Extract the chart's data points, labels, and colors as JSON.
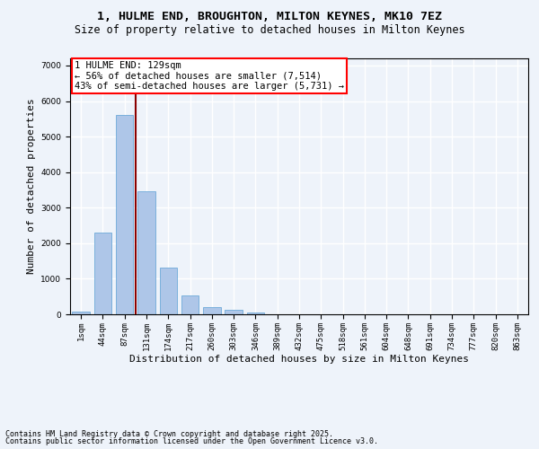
{
  "title1": "1, HULME END, BROUGHTON, MILTON KEYNES, MK10 7EZ",
  "title2": "Size of property relative to detached houses in Milton Keynes",
  "xlabel": "Distribution of detached houses by size in Milton Keynes",
  "ylabel": "Number of detached properties",
  "bar_color": "#aec6e8",
  "bar_edge_color": "#5a9fd4",
  "categories": [
    "1sqm",
    "44sqm",
    "87sqm",
    "131sqm",
    "174sqm",
    "217sqm",
    "260sqm",
    "303sqm",
    "346sqm",
    "389sqm",
    "432sqm",
    "475sqm",
    "518sqm",
    "561sqm",
    "604sqm",
    "648sqm",
    "691sqm",
    "734sqm",
    "777sqm",
    "820sqm",
    "863sqm"
  ],
  "values": [
    70,
    2300,
    5600,
    3450,
    1320,
    520,
    210,
    120,
    60,
    0,
    0,
    0,
    0,
    0,
    0,
    0,
    0,
    0,
    0,
    0,
    0
  ],
  "ylim": [
    0,
    7200
  ],
  "yticks": [
    0,
    1000,
    2000,
    3000,
    4000,
    5000,
    6000,
    7000
  ],
  "annotation_text": "1 HULME END: 129sqm\n← 56% of detached houses are smaller (7,514)\n43% of semi-detached houses are larger (5,731) →",
  "annotation_box_color": "white",
  "annotation_box_edgecolor": "red",
  "vline_color": "darkred",
  "footer1": "Contains HM Land Registry data © Crown copyright and database right 2025.",
  "footer2": "Contains public sector information licensed under the Open Government Licence v3.0.",
  "bg_color": "#eef3fa",
  "plot_bg_color": "#eef3fa",
  "grid_color": "white",
  "title_fontsize": 9.5,
  "subtitle_fontsize": 8.5,
  "label_fontsize": 8,
  "tick_fontsize": 6.5,
  "footer_fontsize": 6,
  "annot_fontsize": 7.5
}
